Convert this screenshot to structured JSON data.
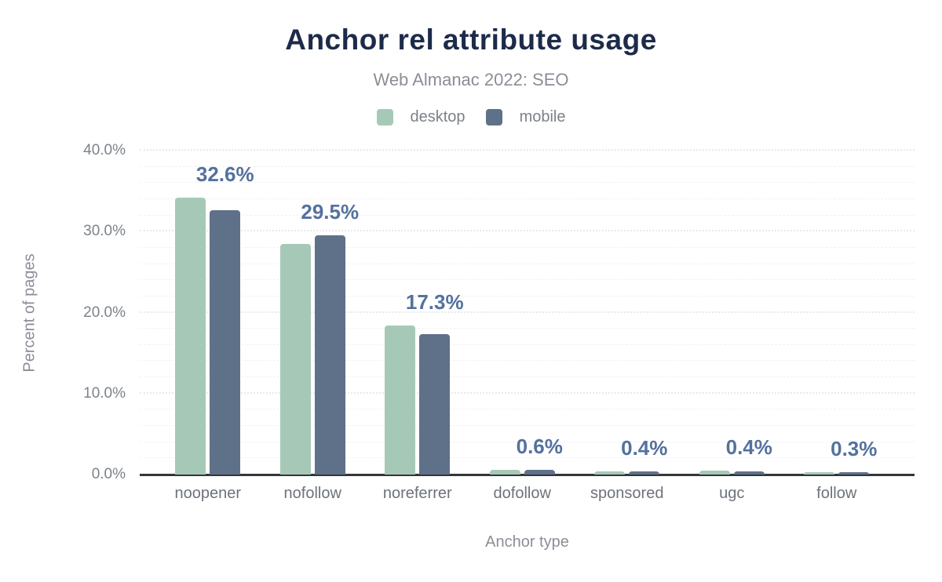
{
  "title": "Anchor rel attribute usage",
  "subtitle": "Web Almanac 2022: SEO",
  "chart_data": {
    "type": "bar",
    "title": "Anchor rel attribute usage",
    "subtitle": "Web Almanac 2022: SEO",
    "categories": [
      "noopener",
      "nofollow",
      "noreferrer",
      "dofollow",
      "sponsored",
      "ugc",
      "follow"
    ],
    "series": [
      {
        "name": "desktop",
        "color": "#a6c9b7",
        "values": [
          34.2,
          28.5,
          18.4,
          0.6,
          0.4,
          0.5,
          0.3
        ]
      },
      {
        "name": "mobile",
        "color": "#5f7089",
        "values": [
          32.6,
          29.5,
          17.3,
          0.6,
          0.4,
          0.4,
          0.3
        ]
      }
    ],
    "value_labels": [
      "32.6%",
      "29.5%",
      "17.3%",
      "0.6%",
      "0.4%",
      "0.4%",
      "0.3%"
    ],
    "value_labels_series": "mobile",
    "xlabel": "Anchor type",
    "ylabel": "Percent of pages",
    "ylim": [
      0,
      40
    ],
    "yticks": [
      {
        "value": 0,
        "label": "0.0%"
      },
      {
        "value": 10,
        "label": "10.0%"
      },
      {
        "value": 20,
        "label": "20.0%"
      },
      {
        "value": 30,
        "label": "30.0%"
      },
      {
        "value": 40,
        "label": "40.0%"
      }
    ],
    "grid": {
      "visible": true,
      "minor_step_pct": 2,
      "major_step_pct": 10
    },
    "legend_position": "top"
  },
  "colors": {
    "title": "#1d2b4a",
    "subtitle": "#8a8e96",
    "legend_text": "#7c818a",
    "axis_tick_text": "#6d727b",
    "axis_title_text": "#8a8e96",
    "value_label": "#54719e",
    "desktop_bar": "#a6c9b7",
    "mobile_bar": "#5f7089",
    "baseline": "#333538",
    "background": "#ffffff"
  }
}
